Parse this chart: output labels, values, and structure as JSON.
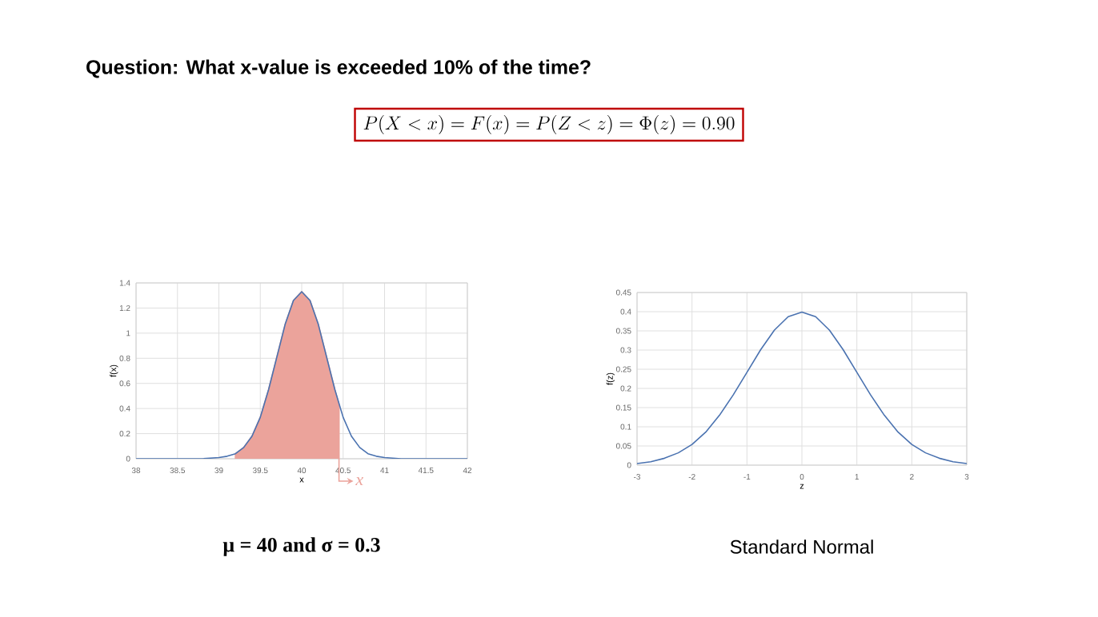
{
  "chart_data": [
    {
      "type": "line",
      "title": "Question: What x-value is exceeded 10% of the time?",
      "xlabel": "x",
      "ylabel": "f(x)",
      "xlim": [
        38,
        42
      ],
      "xticks": [
        38,
        38.5,
        39,
        39.5,
        40,
        40.5,
        41,
        41.5,
        42
      ],
      "ylim": [
        0,
        1.4
      ],
      "yticks": [
        0,
        0.2,
        0.4,
        0.6,
        0.8,
        1,
        1.2,
        1.4
      ],
      "grid": true,
      "annotations": [
        "P(X < x) = F(x) = P(Z < z) = \\Phi(z) = 0.90",
        "μ = 40 and σ = 0.3",
        {
          "text": "x",
          "x": 40.45,
          "y": 0
        }
      ],
      "series": [
        {
          "color": "#4a72b0",
          "x": [
            38,
            38.5,
            38.8,
            39,
            39.1,
            39.2,
            39.3,
            39.4,
            39.5,
            39.6,
            39.7,
            39.8,
            39.9,
            40,
            40.1,
            40.2,
            40.3,
            40.4,
            40.5,
            40.6,
            40.7,
            40.8,
            40.9,
            41,
            41.2,
            41.5,
            42
          ],
          "values": [
            0,
            0,
            0,
            0.01,
            0.02,
            0.04,
            0.09,
            0.18,
            0.33,
            0.55,
            0.81,
            1.07,
            1.26,
            1.33,
            1.26,
            1.07,
            0.81,
            0.55,
            0.33,
            0.18,
            0.09,
            0.04,
            0.02,
            0.01,
            0,
            0,
            0
          ]
        },
        {
          "type": "area",
          "color": "#eba39b",
          "x": [
            39.2,
            39.3,
            39.4,
            39.5,
            39.6,
            39.7,
            39.8,
            39.9,
            40,
            40.1,
            40.2,
            40.3,
            40.4,
            40.45
          ],
          "values": [
            0.04,
            0.09,
            0.18,
            0.33,
            0.55,
            0.81,
            1.07,
            1.26,
            1.33,
            1.26,
            1.07,
            0.81,
            0.55,
            0.43
          ]
        }
      ]
    },
    {
      "type": "line",
      "xlabel": "z",
      "ylabel": "f(z)",
      "xlim": [
        -3,
        3
      ],
      "xticks": [
        -3,
        -2,
        -1,
        0,
        1,
        2,
        3
      ],
      "ylim": [
        0,
        0.45
      ],
      "yticks": [
        0,
        0.05,
        0.1,
        0.15,
        0.2,
        0.25,
        0.3,
        0.35,
        0.4,
        0.45
      ],
      "grid": true,
      "annotations": [
        "Standard Normal"
      ],
      "series": [
        {
          "color": "#4a72b0",
          "x": [
            -3,
            -2.75,
            -2.5,
            -2.25,
            -2,
            -1.75,
            -1.5,
            -1.25,
            -1,
            -0.75,
            -0.5,
            -0.25,
            0,
            0.25,
            0.5,
            0.75,
            1,
            1.25,
            1.5,
            1.75,
            2,
            2.25,
            2.5,
            2.75,
            3
          ],
          "values": [
            0.004,
            0.009,
            0.018,
            0.032,
            0.054,
            0.086,
            0.13,
            0.183,
            0.242,
            0.301,
            0.352,
            0.387,
            0.399,
            0.387,
            0.352,
            0.301,
            0.242,
            0.183,
            0.13,
            0.086,
            0.054,
            0.032,
            0.018,
            0.009,
            0.004
          ]
        }
      ]
    }
  ]
}
